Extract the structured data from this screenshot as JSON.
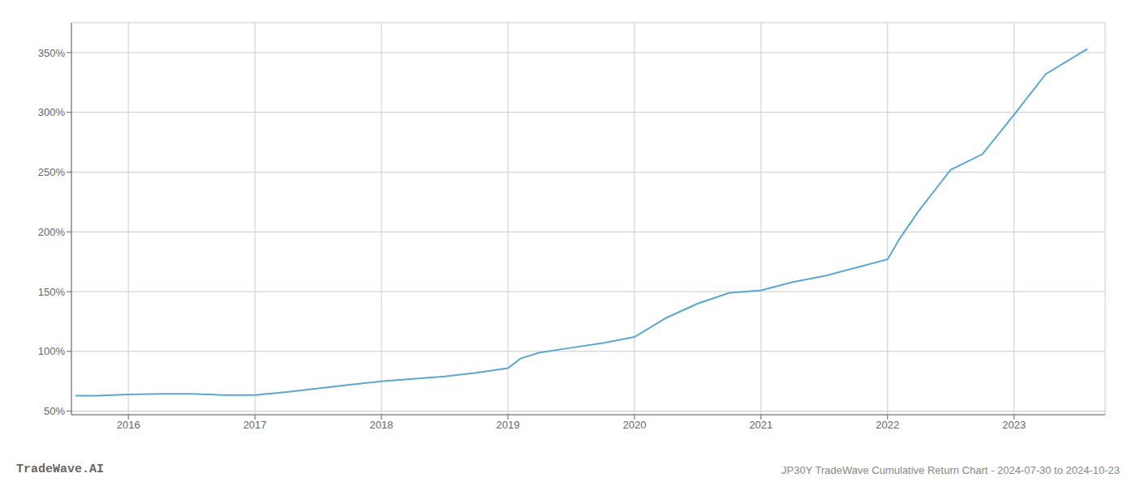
{
  "chart_data": {
    "type": "line",
    "title": "JP30Y TradeWave Cumulative Return Chart - 2024-07-30 to 2024-10-23",
    "annotations": [
      "TradeWave.AI"
    ],
    "x": [
      2015.58,
      2015.75,
      2016.0,
      2016.25,
      2016.5,
      2016.75,
      2017.0,
      2017.25,
      2017.5,
      2017.75,
      2018.0,
      2018.25,
      2018.5,
      2018.75,
      2019.0,
      2019.1,
      2019.25,
      2019.5,
      2019.75,
      2020.0,
      2020.25,
      2020.5,
      2020.75,
      2021.0,
      2021.25,
      2021.5,
      2021.75,
      2022.0,
      2022.1,
      2022.25,
      2022.5,
      2022.75,
      2023.0,
      2023.25,
      2023.58
    ],
    "values": [
      63,
      63,
      64,
      64.5,
      64.5,
      63.5,
      63.5,
      66,
      69,
      72,
      75,
      77,
      79,
      82,
      86,
      94,
      99,
      103,
      107,
      112,
      128,
      140,
      149,
      151,
      158,
      163,
      170,
      177,
      195,
      218,
      252,
      265,
      298,
      332,
      353
    ],
    "color": "#5aa8d0",
    "xlim": [
      2015.55,
      2023.72
    ],
    "xticks": [
      2016,
      2017,
      2018,
      2019,
      2020,
      2021,
      2022,
      2023
    ],
    "ylim": [
      47,
      375
    ],
    "yticks": [
      {
        "value": 50,
        "label": "50%"
      },
      {
        "value": 100,
        "label": "100%"
      },
      {
        "value": 150,
        "label": "150%"
      },
      {
        "value": 200,
        "label": "200%"
      },
      {
        "value": 250,
        "label": "250%"
      },
      {
        "value": 300,
        "label": "300%"
      },
      {
        "value": 350,
        "label": "350%"
      }
    ],
    "grid": true
  }
}
